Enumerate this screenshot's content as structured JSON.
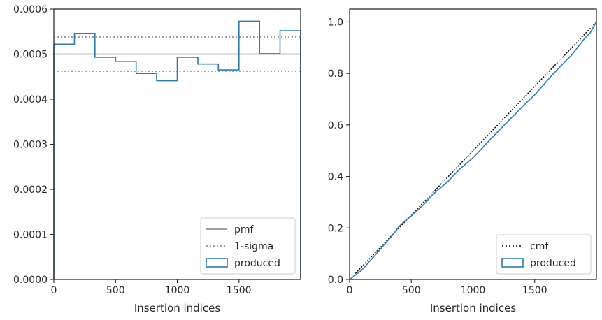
{
  "chart_data": [
    {
      "type": "line",
      "title": "",
      "xlabel": "Insertion indices",
      "ylabel": "",
      "xlim": [
        0,
        2000
      ],
      "ylim": [
        0,
        0.0006
      ],
      "grid": false,
      "legend_position": "lower-right",
      "xticks": [
        0,
        500,
        1000,
        1500
      ],
      "xtick_labels": [
        "0",
        "500",
        "1000",
        "1500"
      ],
      "yticks": [
        0,
        0.0001,
        0.0002,
        0.0003,
        0.0004,
        0.0005,
        0.0006
      ],
      "ytick_labels": [
        "0.0000",
        "0.0001",
        "0.0002",
        "0.0003",
        "0.0004",
        "0.0005",
        "0.0006"
      ],
      "reference_lines": [
        {
          "name": "pmf",
          "y": 0.0005,
          "style": "solid",
          "color": "#808080"
        },
        {
          "name": "1-sigma",
          "y": 0.000538,
          "style": "dotted",
          "color": "#808080"
        },
        {
          "name": "1-sigma",
          "y": 0.000462,
          "style": "dotted",
          "color": "#808080"
        }
      ],
      "series": [
        {
          "name": "produced",
          "kind": "step-histogram",
          "color": "#2b7bb0",
          "bin_edges": [
            0,
            167,
            333,
            500,
            667,
            833,
            1000,
            1167,
            1333,
            1500,
            1667,
            1833,
            2000
          ],
          "values": [
            0.000522,
            0.000546,
            0.000493,
            0.000484,
            0.000457,
            0.000441,
            0.000493,
            0.000478,
            0.000465,
            0.000573,
            0.000501,
            0.000552
          ]
        }
      ],
      "legend": [
        "pmf",
        "1-sigma",
        "produced"
      ]
    },
    {
      "type": "line",
      "title": "",
      "xlabel": "Insertion indices",
      "ylabel": "",
      "xlim": [
        0,
        2000
      ],
      "ylim": [
        0,
        1.05
      ],
      "grid": false,
      "legend_position": "lower-right",
      "xticks": [
        0,
        500,
        1000,
        1500
      ],
      "xtick_labels": [
        "0",
        "500",
        "1000",
        "1500"
      ],
      "yticks": [
        0,
        0.2,
        0.4,
        0.6,
        0.8,
        1.0
      ],
      "ytick_labels": [
        "0.0",
        "0.2",
        "0.4",
        "0.6",
        "0.8",
        "1.0"
      ],
      "series": [
        {
          "name": "cmf",
          "style": "dotted",
          "color": "#000000",
          "x": [
            0,
            2000
          ],
          "y": [
            0,
            1.0
          ]
        },
        {
          "name": "produced",
          "style": "solid",
          "color": "#2b7bb0",
          "x": [
            0,
            50,
            100,
            150,
            200,
            250,
            300,
            350,
            400,
            450,
            500,
            550,
            600,
            650,
            700,
            750,
            800,
            850,
            900,
            950,
            1000,
            1050,
            1100,
            1150,
            1200,
            1250,
            1300,
            1350,
            1400,
            1450,
            1500,
            1550,
            1600,
            1650,
            1700,
            1750,
            1800,
            1850,
            1900,
            1950,
            2000
          ],
          "y": [
            0,
            0.018,
            0.037,
            0.064,
            0.091,
            0.118,
            0.146,
            0.173,
            0.206,
            0.228,
            0.247,
            0.268,
            0.291,
            0.317,
            0.341,
            0.361,
            0.382,
            0.408,
            0.432,
            0.452,
            0.473,
            0.497,
            0.523,
            0.549,
            0.573,
            0.598,
            0.623,
            0.646,
            0.671,
            0.694,
            0.717,
            0.744,
            0.772,
            0.798,
            0.823,
            0.848,
            0.872,
            0.903,
            0.933,
            0.958,
            1.0
          ]
        }
      ],
      "legend": [
        "cmf",
        "produced"
      ]
    }
  ]
}
